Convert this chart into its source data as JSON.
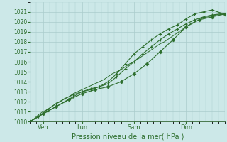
{
  "bg_color": "#cce8e8",
  "grid_color": "#aacccc",
  "line_color": "#2d6e2d",
  "xlabel": "Pression niveau de la mer( hPa )",
  "ylim": [
    1010,
    1022
  ],
  "yticks": [
    1010,
    1011,
    1012,
    1013,
    1014,
    1015,
    1016,
    1017,
    1018,
    1019,
    1020,
    1021
  ],
  "xtick_labels": [
    "Ven",
    "Lun",
    "Sam",
    "Dim"
  ],
  "xtick_positions": [
    18,
    72,
    144,
    216
  ],
  "xlim": [
    0,
    270
  ],
  "series1_x": [
    0,
    6,
    12,
    18,
    24,
    30,
    36,
    42,
    48,
    54,
    60,
    66,
    72,
    78,
    84,
    90,
    96,
    102,
    108,
    114,
    120,
    126,
    132,
    138,
    144,
    150,
    156,
    162,
    168,
    174,
    180,
    186,
    192,
    198,
    204,
    210,
    216,
    222,
    228,
    234,
    240,
    246,
    252,
    258,
    264,
    270
  ],
  "series1_y": [
    1010.0,
    1010.3,
    1010.7,
    1011.0,
    1011.2,
    1011.5,
    1011.8,
    1012.0,
    1012.3,
    1012.5,
    1012.8,
    1013.0,
    1013.2,
    1013.4,
    1013.6,
    1013.8,
    1014.0,
    1014.2,
    1014.5,
    1014.8,
    1015.0,
    1015.2,
    1015.5,
    1015.8,
    1016.0,
    1016.3,
    1016.6,
    1016.9,
    1017.2,
    1017.5,
    1017.8,
    1018.0,
    1018.3,
    1018.6,
    1018.9,
    1019.2,
    1019.5,
    1019.8,
    1020.0,
    1020.2,
    1020.4,
    1020.5,
    1020.6,
    1020.7,
    1020.8,
    1020.8
  ],
  "series2_x": [
    0,
    12,
    24,
    36,
    48,
    60,
    72,
    84,
    96,
    108,
    120,
    132,
    144,
    156,
    168,
    180,
    192,
    204,
    216,
    228,
    240,
    252,
    264
  ],
  "series2_y": [
    1010.0,
    1010.5,
    1011.0,
    1011.5,
    1012.0,
    1012.5,
    1013.0,
    1013.3,
    1013.5,
    1013.8,
    1014.5,
    1015.3,
    1016.0,
    1016.8,
    1017.5,
    1018.2,
    1018.8,
    1019.3,
    1019.8,
    1020.2,
    1020.5,
    1020.7,
    1020.8
  ],
  "series3_x": [
    0,
    12,
    24,
    36,
    48,
    60,
    72,
    84,
    96,
    108,
    120,
    132,
    144,
    156,
    168,
    180,
    192,
    204,
    216,
    228,
    240,
    252,
    264
  ],
  "series3_y": [
    1010.0,
    1010.5,
    1011.2,
    1011.8,
    1012.3,
    1012.7,
    1013.0,
    1013.2,
    1013.5,
    1014.0,
    1014.8,
    1015.8,
    1016.8,
    1017.5,
    1018.2,
    1018.8,
    1019.3,
    1019.7,
    1020.3,
    1020.8,
    1021.0,
    1021.2,
    1020.9
  ],
  "series4_x": [
    0,
    18,
    36,
    54,
    72,
    90,
    108,
    126,
    144,
    162,
    180,
    198,
    216,
    234,
    252,
    270
  ],
  "series4_y": [
    1010.0,
    1010.8,
    1011.5,
    1012.2,
    1012.8,
    1013.2,
    1013.5,
    1014.0,
    1014.8,
    1015.8,
    1017.0,
    1018.2,
    1019.5,
    1020.2,
    1020.5,
    1020.8
  ]
}
